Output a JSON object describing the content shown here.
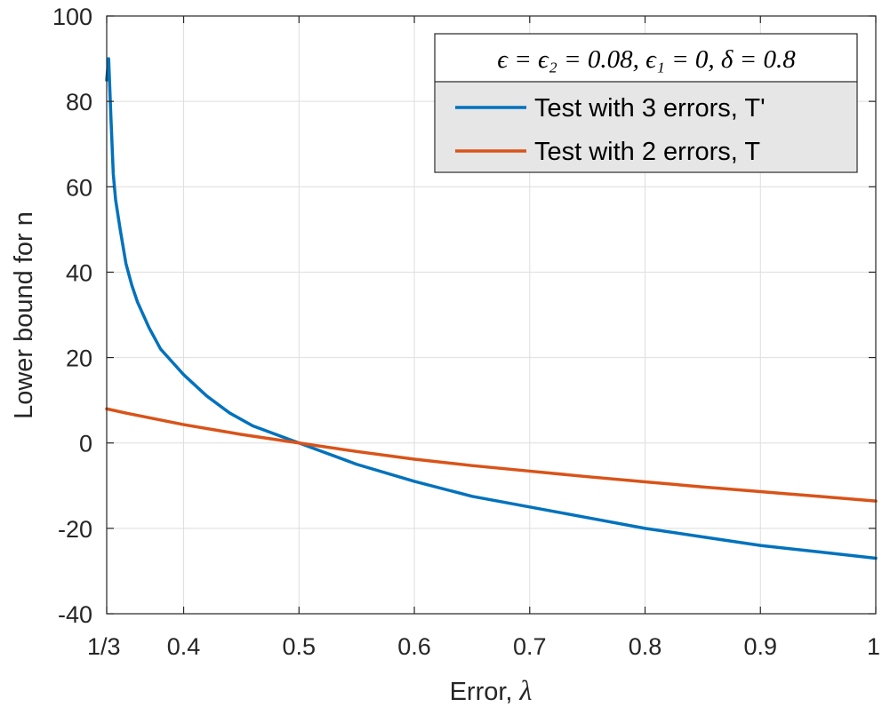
{
  "chart_data": {
    "type": "line",
    "xlabel_text": "Error, ",
    "xlabel_symbol": "λ",
    "ylabel": "Lower bound for n",
    "xlim": [
      0.3333,
      1.0
    ],
    "ylim": [
      -40,
      100
    ],
    "xticks": [
      0.3333,
      0.4,
      0.5,
      0.6,
      0.7,
      0.8,
      0.9,
      1.0
    ],
    "xtick_labels": [
      "1/3",
      "0.4",
      "0.5",
      "0.6",
      "0.7",
      "0.8",
      "0.9",
      "1"
    ],
    "yticks": [
      -40,
      -20,
      0,
      20,
      40,
      60,
      80,
      100
    ],
    "ytick_labels": [
      "-40",
      "-20",
      "0",
      "20",
      "40",
      "60",
      "80",
      "100"
    ],
    "grid": true,
    "legend": {
      "placement": "top-right",
      "title": "ϵ = ϵ₂ = 0.08, ϵ₁ = 0, δ = 0.8"
    },
    "series": [
      {
        "name": "Test with 3 errors, T'",
        "color": "#0072BD",
        "x": [
          0.3333,
          0.335,
          0.337,
          0.339,
          0.341,
          0.345,
          0.35,
          0.355,
          0.36,
          0.37,
          0.38,
          0.39,
          0.4,
          0.42,
          0.44,
          0.46,
          0.48,
          0.5,
          0.52,
          0.55,
          0.6,
          0.65,
          0.7,
          0.75,
          0.8,
          0.85,
          0.9,
          0.95,
          1.0
        ],
        "y": [
          85,
          90,
          76,
          63,
          57,
          50,
          42,
          37,
          33,
          27,
          22,
          19,
          16,
          11,
          7,
          4,
          2,
          0,
          -2,
          -5,
          -9,
          -12.5,
          -15,
          -17.5,
          -20,
          -22,
          -24,
          -25.5,
          -27
        ]
      },
      {
        "name": "Test with 2 errors, T",
        "color": "#D95319",
        "x": [
          0.3333,
          0.35,
          0.4,
          0.45,
          0.5,
          0.55,
          0.6,
          0.65,
          0.7,
          0.75,
          0.8,
          0.85,
          0.9,
          0.95,
          1.0
        ],
        "y": [
          8,
          7,
          4.3,
          2,
          0,
          -2,
          -3.8,
          -5.3,
          -6.6,
          -7.9,
          -9.1,
          -10.3,
          -11.4,
          -12.5,
          -13.6
        ]
      }
    ]
  }
}
